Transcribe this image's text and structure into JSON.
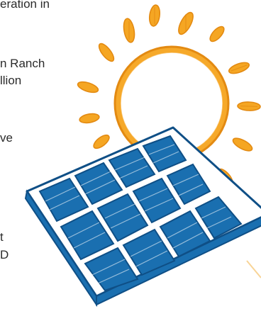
{
  "text_fragments": [
    "eration in",
    "n Ranch",
    "llion",
    "ve",
    "t",
    "D"
  ],
  "illustration": {
    "subject": "sun-and-solar-panel",
    "colors": {
      "sun": "#F5A623",
      "sun_outline": "#E38A12",
      "panel_frame": "#FFFFFF",
      "panel_cells": "#1A6FB0",
      "panel_outline": "#0F4F86"
    }
  }
}
